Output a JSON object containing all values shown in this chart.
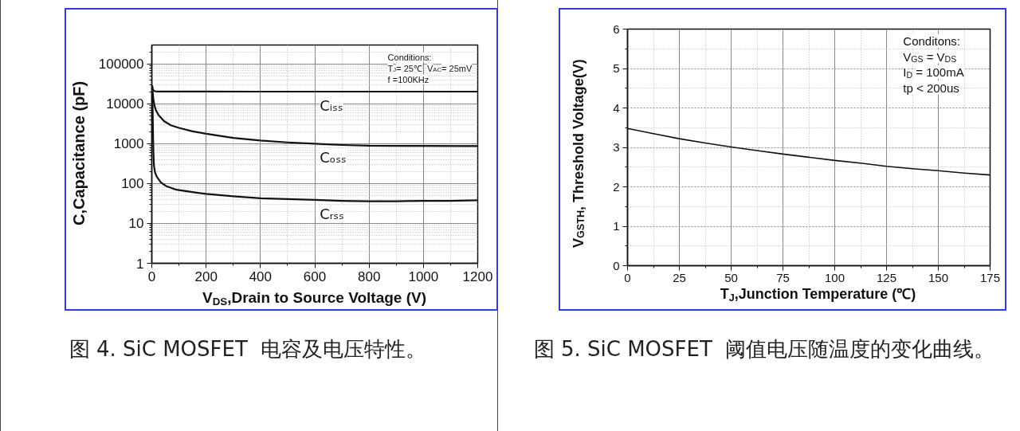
{
  "chart_data": [
    {
      "type": "line",
      "xlabel": "V$_{DS}$,Drain to Source Voltage (V)",
      "ylabel": "C,Capacitance (pF)",
      "annotations": [
        "Conditions:",
        "T$_{J}$= 25℃  V$_{AC}$= 25mV",
        "f =100KHz",
        "图 4. SiC MOSFET  电容及电压特性。"
      ],
      "xlim": [
        0,
        1200
      ],
      "ylim": [
        1,
        300000
      ],
      "xticks": [
        0,
        {
          "value": 100,
          "label": null
        },
        200,
        {
          "value": 300,
          "label": null
        },
        400,
        {
          "value": 500,
          "label": null
        },
        600,
        {
          "value": 700,
          "label": null
        },
        800,
        {
          "value": 900,
          "label": null
        },
        1000,
        {
          "value": 1100,
          "label": null
        },
        1200
      ],
      "yticks": [
        1,
        {
          "value": 2,
          "label": null
        },
        {
          "value": 3,
          "label": null
        },
        {
          "value": 4,
          "label": null
        },
        {
          "value": 5,
          "label": null
        },
        {
          "value": 6,
          "label": null
        },
        {
          "value": 7,
          "label": null
        },
        {
          "value": 8,
          "label": null
        },
        {
          "value": 9,
          "label": null
        },
        10,
        {
          "value": 20,
          "label": null
        },
        {
          "value": 30,
          "label": null
        },
        {
          "value": 40,
          "label": null
        },
        {
          "value": 50,
          "label": null
        },
        {
          "value": 60,
          "label": null
        },
        {
          "value": 70,
          "label": null
        },
        {
          "value": 80,
          "label": null
        },
        {
          "value": 90,
          "label": null
        },
        100,
        {
          "value": 200,
          "label": null
        },
        {
          "value": 300,
          "label": null
        },
        {
          "value": 400,
          "label": null
        },
        {
          "value": 500,
          "label": null
        },
        {
          "value": 600,
          "label": null
        },
        {
          "value": 700,
          "label": null
        },
        {
          "value": 800,
          "label": null
        },
        {
          "value": 900,
          "label": null
        },
        1000,
        {
          "value": 2000,
          "label": null
        },
        {
          "value": 3000,
          "label": null
        },
        {
          "value": 4000,
          "label": null
        },
        {
          "value": 5000,
          "label": null
        },
        {
          "value": 6000,
          "label": null
        },
        {
          "value": 7000,
          "label": null
        },
        {
          "value": 8000,
          "label": null
        },
        {
          "value": 9000,
          "label": null
        },
        10000,
        {
          "value": 20000,
          "label": null
        },
        {
          "value": 30000,
          "label": null
        },
        {
          "value": 40000,
          "label": null
        },
        {
          "value": 50000,
          "label": null
        },
        {
          "value": 60000,
          "label": null
        },
        {
          "value": 70000,
          "label": null
        },
        {
          "value": 80000,
          "label": null
        },
        {
          "value": 90000,
          "label": null
        },
        100000,
        {
          "value": 200000,
          "label": null
        }
      ],
      "log": true,
      "grid": true,
      "series": [
        {
          "name": "Cᵢₛₛ",
          "color": "#111111",
          "x": [
            2,
            4,
            7,
            12,
            20,
            100,
            400,
            800,
            1200
          ],
          "values": [
            28000,
            23000,
            21500,
            20800,
            20500,
            20400,
            20300,
            20300,
            20300
          ]
        },
        {
          "name": "Cₒₛₛ",
          "color": "#111111",
          "x": [
            3,
            6,
            10,
            15,
            25,
            45,
            70,
            100,
            150,
            200,
            300,
            400,
            500,
            600,
            700,
            800,
            1000,
            1200
          ],
          "values": [
            20000,
            13000,
            9000,
            7000,
            5200,
            3700,
            2900,
            2500,
            2050,
            1780,
            1400,
            1200,
            1080,
            1000,
            930,
            890,
            880,
            875
          ]
        },
        {
          "name": "Cᵣₛₛ",
          "color": "#111111",
          "x": [
            2,
            3,
            4,
            5,
            6,
            8,
            12,
            18,
            33,
            52,
            91,
            150,
            200,
            300,
            400,
            500,
            600,
            700,
            800,
            900,
            1000,
            1100,
            1200
          ],
          "values": [
            20000,
            8000,
            3000,
            1200,
            600,
            280,
            190,
            150,
            108,
            87,
            70,
            61,
            55,
            48,
            43,
            41,
            39,
            37,
            36,
            36,
            37,
            37,
            38
          ]
        }
      ]
    },
    {
      "type": "line",
      "xlabel": "T$_{J}$,Junction Temperature (℃)",
      "ylabel": "V$_{GSTH}$, Threshold Voltage(V)",
      "annotations": [
        "Conditons:",
        "V$_{GS}$ = V$_{DS}$",
        "I$_{D}$ = 100mA",
        "tp < 200us",
        "图 5. SiC MOSFET  阈值电压随温度的变化曲线。"
      ],
      "xlim": [
        0,
        175
      ],
      "ylim": [
        0,
        6
      ],
      "xticks": [
        0,
        {
          "value": 12.5,
          "label": null
        },
        25,
        {
          "value": 37.5,
          "label": null
        },
        50,
        {
          "value": 62.5,
          "label": null
        },
        75,
        {
          "value": 87.5,
          "label": null
        },
        100,
        {
          "value": 112.5,
          "label": null
        },
        125,
        {
          "value": 137.5,
          "label": null
        },
        150,
        {
          "value": 162.5,
          "label": null
        },
        175
      ],
      "yticks": [
        0,
        {
          "value": 0.5,
          "label": null
        },
        1,
        {
          "value": 1.5,
          "label": null
        },
        2,
        {
          "value": 2.5,
          "label": null
        },
        3,
        {
          "value": 3.5,
          "label": null
        },
        4,
        {
          "value": 4.5,
          "label": null
        },
        5,
        {
          "value": 5.5,
          "label": null
        },
        6
      ],
      "grid": true,
      "series": [
        {
          "color": "#111111",
          "x": [
            0,
            12.5,
            25,
            37.5,
            50,
            62.5,
            75,
            87.5,
            100,
            112.5,
            125,
            137.5,
            150,
            162.5,
            175
          ],
          "values": [
            3.48,
            3.35,
            3.22,
            3.11,
            3.01,
            2.92,
            2.83,
            2.75,
            2.67,
            2.6,
            2.52,
            2.46,
            2.41,
            2.35,
            2.3
          ]
        }
      ]
    }
  ]
}
